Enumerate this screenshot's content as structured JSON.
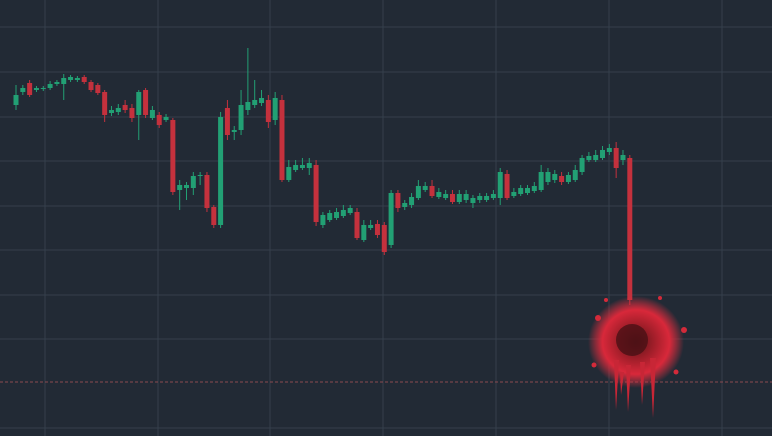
{
  "chart_data": {
    "type": "candlestick",
    "up_color": "#22a074",
    "down_color": "#c4313d",
    "grid": true,
    "ylim": [
      0,
      436
    ],
    "yticks": [
      409,
      364,
      319,
      275,
      230,
      186,
      141,
      97,
      8
    ],
    "price_line": 54,
    "price_line_color": "#8a4a50",
    "open": [
      331,
      344,
      353,
      346,
      347,
      348,
      352,
      352,
      356,
      356,
      359,
      354,
      351,
      344,
      323,
      324,
      331,
      328,
      321,
      346,
      318,
      321,
      316,
      316,
      246,
      248,
      248,
      260,
      261,
      229,
      211,
      328,
      304,
      306,
      326,
      331,
      333,
      336,
      316,
      336,
      256,
      266,
      268,
      268,
      271,
      211,
      216,
      218,
      220,
      223,
      224,
      196,
      208,
      212,
      211,
      191,
      243,
      229,
      231,
      238,
      246,
      250,
      239,
      238,
      242,
      234,
      236,
      233,
      236,
      236,
      238,
      238,
      262,
      240,
      242,
      243,
      245,
      246,
      254,
      256,
      260,
      254,
      256,
      264,
      276,
      276,
      278,
      284,
      288,
      276,
      278
    ],
    "high": [
      351,
      351,
      356,
      350,
      350,
      355,
      356,
      362,
      361,
      360,
      361,
      356,
      353,
      346,
      330,
      332,
      336,
      332,
      346,
      348,
      330,
      324,
      322,
      318,
      256,
      254,
      264,
      264,
      264,
      231,
      324,
      336,
      310,
      346,
      388,
      356,
      346,
      341,
      344,
      341,
      276,
      276,
      278,
      278,
      276,
      224,
      226,
      228,
      231,
      231,
      228,
      216,
      216,
      216,
      214,
      246,
      246,
      236,
      243,
      256,
      254,
      256,
      248,
      246,
      246,
      246,
      246,
      241,
      243,
      243,
      246,
      268,
      266,
      248,
      251,
      251,
      254,
      271,
      268,
      266,
      264,
      264,
      271,
      281,
      284,
      286,
      290,
      292,
      294,
      286,
      281
    ],
    "low": [
      326,
      341,
      339,
      344,
      345,
      346,
      350,
      336,
      354,
      354,
      352,
      344,
      341,
      314,
      320,
      321,
      323,
      314,
      296,
      318,
      316,
      308,
      314,
      241,
      226,
      236,
      241,
      251,
      224,
      208,
      208,
      296,
      296,
      301,
      321,
      328,
      330,
      308,
      311,
      254,
      254,
      264,
      266,
      261,
      210,
      208,
      214,
      216,
      218,
      221,
      196,
      194,
      206,
      198,
      181,
      188,
      224,
      226,
      228,
      236,
      244,
      238,
      237,
      236,
      232,
      232,
      233,
      228,
      233,
      234,
      236,
      231,
      236,
      238,
      240,
      241,
      243,
      244,
      251,
      253,
      251,
      252,
      254,
      261,
      274,
      274,
      276,
      281,
      258,
      271,
      131
    ],
    "close": [
      341,
      348,
      341,
      348,
      348,
      352,
      354,
      358,
      359,
      358,
      354,
      346,
      343,
      321,
      326,
      328,
      326,
      318,
      344,
      321,
      326,
      311,
      319,
      244,
      251,
      251,
      260,
      261,
      228,
      211,
      319,
      301,
      306,
      331,
      334,
      336,
      338,
      314,
      338,
      256,
      269,
      271,
      271,
      273,
      214,
      221,
      223,
      224,
      226,
      228,
      198,
      211,
      211,
      201,
      184,
      243,
      228,
      233,
      239,
      250,
      250,
      240,
      244,
      242,
      234,
      242,
      242,
      238,
      240,
      240,
      242,
      264,
      238,
      244,
      248,
      248,
      250,
      264,
      264,
      262,
      254,
      261,
      266,
      278,
      280,
      281,
      286,
      288,
      268,
      281,
      136
    ]
  }
}
